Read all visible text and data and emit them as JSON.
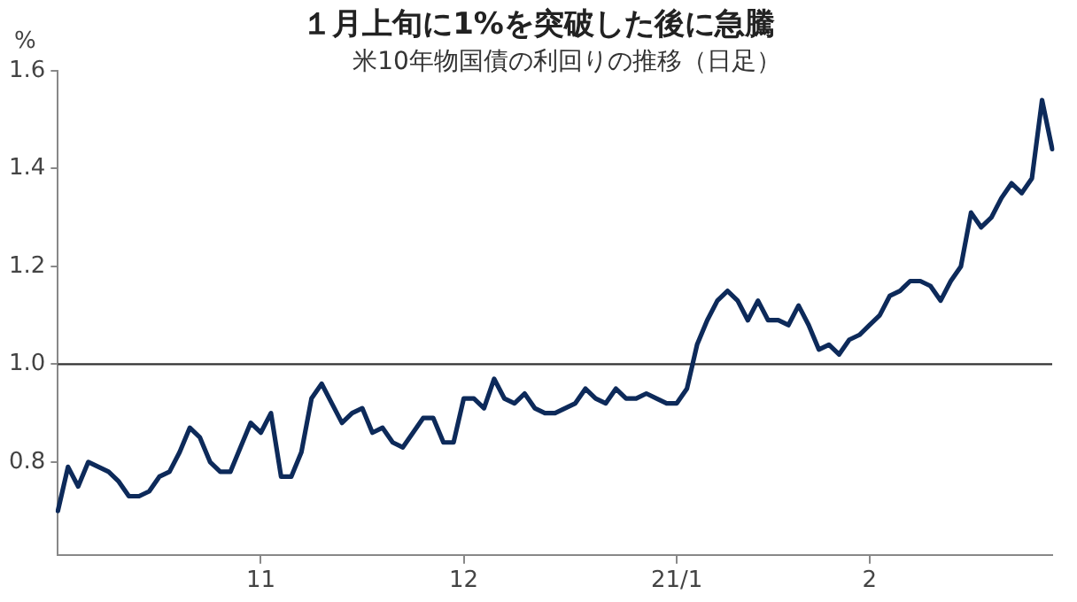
{
  "chart_data": {
    "type": "line",
    "title": "１月上旬に1%を突破した後に急騰",
    "subtitle": "米10年物国債の利回りの推移（日足）",
    "ylabel": "%",
    "categories": [
      null,
      null,
      null,
      null,
      null,
      null,
      null,
      null,
      null,
      null,
      null,
      null,
      null,
      null,
      null,
      null,
      null,
      null,
      null,
      null,
      "11",
      null,
      null,
      null,
      null,
      null,
      null,
      null,
      null,
      null,
      null,
      null,
      null,
      null,
      null,
      null,
      null,
      null,
      null,
      null,
      "12",
      null,
      null,
      null,
      null,
      null,
      null,
      null,
      null,
      null,
      null,
      null,
      null,
      null,
      null,
      null,
      null,
      null,
      null,
      null,
      null,
      "21/1",
      null,
      null,
      null,
      null,
      null,
      null,
      null,
      null,
      null,
      null,
      null,
      null,
      null,
      null,
      null,
      null,
      null,
      null,
      "2",
      null,
      null,
      null,
      null,
      null,
      null,
      null,
      null,
      null,
      null,
      null,
      null,
      null,
      null,
      null,
      null,
      null,
      null
    ],
    "series": [
      {
        "color": "#0d2a5a",
        "values": [
          0.7,
          0.79,
          0.75,
          0.8,
          0.79,
          0.78,
          0.76,
          0.73,
          0.73,
          0.74,
          0.77,
          0.78,
          0.82,
          0.87,
          0.85,
          0.8,
          0.78,
          0.78,
          0.83,
          0.88,
          0.86,
          0.9,
          0.77,
          0.77,
          0.82,
          0.93,
          0.96,
          0.92,
          0.88,
          0.9,
          0.91,
          0.86,
          0.87,
          0.84,
          0.83,
          0.86,
          0.89,
          0.89,
          0.84,
          0.84,
          0.93,
          0.93,
          0.91,
          0.97,
          0.93,
          0.92,
          0.94,
          0.91,
          0.9,
          0.9,
          0.91,
          0.92,
          0.95,
          0.93,
          0.92,
          0.95,
          0.93,
          0.93,
          0.94,
          0.93,
          0.92,
          0.92,
          0.95,
          1.04,
          1.09,
          1.13,
          1.15,
          1.13,
          1.09,
          1.13,
          1.09,
          1.09,
          1.08,
          1.12,
          1.08,
          1.03,
          1.04,
          1.02,
          1.05,
          1.06,
          1.08,
          1.1,
          1.14,
          1.15,
          1.17,
          1.17,
          1.16,
          1.13,
          1.17,
          1.2,
          1.31,
          1.28,
          1.3,
          1.34,
          1.37,
          1.35,
          1.38,
          1.54,
          1.44
        ]
      }
    ],
    "ylim": [
      0.61,
      1.6
    ],
    "yticks": [
      {
        "value": 0.8,
        "label": "0.8"
      },
      {
        "value": 1,
        "label": "1.0"
      },
      {
        "value": 1.2,
        "label": "1.2"
      },
      {
        "value": 1.4,
        "label": "1.4"
      },
      {
        "value": 1.6,
        "label": "1.6"
      }
    ],
    "ref_lines": [
      {
        "axis": "y",
        "value": 1,
        "color": "#333333"
      }
    ],
    "grid": false,
    "legend": false,
    "marker": "none",
    "line_style": "solid"
  }
}
